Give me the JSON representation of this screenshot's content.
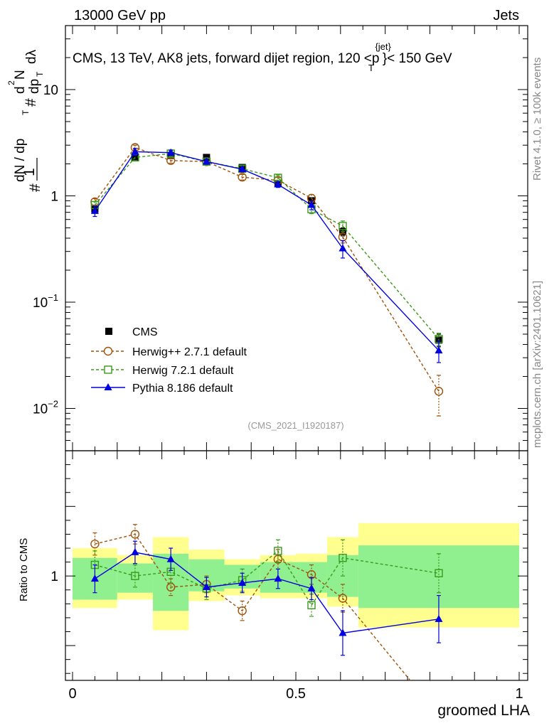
{
  "header": {
    "left": "13000 GeV pp",
    "right": "Jets"
  },
  "title": "CMS, 13 TeV, AK8 jets, forward dijet region, 120 <p_T^{jet}< 150 GeV",
  "title_parts": {
    "main": "CMS, 13 TeV, AK8 jets, forward dijet region, 120 <p",
    "sup": "{jet}",
    "sub": "T",
    "tail": "}< 150 GeV"
  },
  "ylabel_parts": [
    "#",
    "1",
    "dN / dp",
    "T",
    "#",
    "d",
    "2",
    "N",
    "dp",
    "T",
    "dλ"
  ],
  "ratio_ylabel": "Ratio to CMS",
  "xlabel": "groomed LHA",
  "watermark": "(CMS_2021_I1920187)",
  "side_text": {
    "rivet": "Rivet 4.1.0, ≥ 100k events",
    "mcplots": "mcplots.cern.ch [arXiv:2401.10621]"
  },
  "colors": {
    "cms": "#000000",
    "herwigpp": "#a0520a",
    "herwig7": "#3a9a1a",
    "pythia": "#0000e0",
    "band_inner": "#90f090",
    "band_outer": "#ffff90"
  },
  "chart_data": {
    "type": "line",
    "main_axes": {
      "xlim": [
        0,
        1
      ],
      "ylim_log": [
        0.004,
        40
      ],
      "yticks": [
        {
          "v": 0.01,
          "base": "10",
          "exp": "−2"
        },
        {
          "v": 0.1,
          "base": "10",
          "exp": "−1"
        },
        {
          "v": 1,
          "label": "1"
        },
        {
          "v": 10,
          "label": "10"
        }
      ]
    },
    "ratio_axes": {
      "xlim": [
        0,
        1
      ],
      "ylim": [
        0.25,
        1.9
      ],
      "yticks": [
        {
          "v": 1,
          "label": "1"
        }
      ]
    },
    "xticks": [
      {
        "v": 0,
        "label": "0"
      },
      {
        "v": 0.5,
        "label": "0.5"
      },
      {
        "v": 1,
        "label": "1"
      }
    ],
    "bins": [
      [
        0,
        0.1
      ],
      [
        0.1,
        0.18
      ],
      [
        0.18,
        0.26
      ],
      [
        0.26,
        0.34
      ],
      [
        0.34,
        0.42
      ],
      [
        0.42,
        0.5
      ],
      [
        0.5,
        0.57
      ],
      [
        0.57,
        0.64
      ],
      [
        0.64,
        1.0
      ]
    ],
    "x": [
      0.05,
      0.14,
      0.22,
      0.3,
      0.38,
      0.46,
      0.535,
      0.605,
      0.82
    ],
    "series": [
      {
        "name": "CMS",
        "marker": "filled-square",
        "style": "none",
        "color": "#000000",
        "values": [
          0.75,
          2.3,
          2.4,
          2.3,
          1.85,
          1.3,
          0.9,
          0.46,
          0.044
        ],
        "errors": [
          0.06,
          0.15,
          0.15,
          0.15,
          0.12,
          0.08,
          0.06,
          0.04,
          0.006
        ]
      },
      {
        "name": "Herwig++ 2.7.1 default",
        "marker": "open-circle",
        "style": "dashed",
        "color": "#a0520a",
        "values": [
          0.88,
          2.85,
          2.15,
          2.1,
          1.5,
          1.4,
          0.95,
          0.41,
          0.0145
        ],
        "errors": [
          0.06,
          0.15,
          0.12,
          0.12,
          0.09,
          0.09,
          0.08,
          0.05,
          0.006
        ]
      },
      {
        "name": "Herwig 7.2.1 default",
        "marker": "open-square",
        "style": "dashed",
        "color": "#3a9a1a",
        "values": [
          0.82,
          2.3,
          2.5,
          2.1,
          1.8,
          1.48,
          0.75,
          0.52,
          0.045
        ],
        "errors": [
          0.06,
          0.15,
          0.15,
          0.12,
          0.1,
          0.09,
          0.07,
          0.06,
          0.006
        ]
      },
      {
        "name": "Pythia 8.186 default",
        "marker": "filled-triangle",
        "style": "solid",
        "color": "#0000e0",
        "values": [
          0.72,
          2.6,
          2.55,
          2.1,
          1.78,
          1.28,
          0.82,
          0.32,
          0.035
        ],
        "errors": [
          0.08,
          0.2,
          0.15,
          0.12,
          0.1,
          0.08,
          0.08,
          0.06,
          0.008
        ]
      }
    ],
    "ratio": {
      "band_inner": [
        [
          0.83,
          1.13
        ],
        [
          0.88,
          1.09
        ],
        [
          0.75,
          1.16
        ],
        [
          0.89,
          1.12
        ],
        [
          0.91,
          1.08
        ],
        [
          0.88,
          1.1
        ],
        [
          0.88,
          1.1
        ],
        [
          0.85,
          1.15
        ],
        [
          0.77,
          1.22
        ]
      ],
      "band_outer": [
        [
          0.77,
          1.2
        ],
        [
          0.83,
          1.15
        ],
        [
          0.61,
          1.28
        ],
        [
          0.82,
          1.19
        ],
        [
          0.86,
          1.12
        ],
        [
          0.84,
          1.15
        ],
        [
          0.84,
          1.16
        ],
        [
          0.78,
          1.28
        ],
        [
          0.63,
          1.38
        ]
      ],
      "series": [
        {
          "name": "Herwig++ 2.7.1 default",
          "values": [
            1.23,
            1.3,
            0.92,
            0.94,
            0.75,
            1.12,
            1.01,
            0.84,
            0.0
          ],
          "errors": [
            0.08,
            0.07,
            0.06,
            0.06,
            0.07,
            0.07,
            0.07,
            0.1,
            0.0
          ]
        },
        {
          "name": "Herwig 7.2.1 default",
          "values": [
            1.08,
            1.0,
            1.03,
            0.91,
            0.97,
            1.18,
            0.79,
            1.13,
            1.02
          ],
          "errors": [
            0.1,
            0.08,
            0.08,
            0.08,
            0.08,
            0.08,
            0.08,
            0.13,
            0.14
          ]
        },
        {
          "name": "Pythia 8.186 default",
          "values": [
            0.98,
            1.17,
            1.12,
            0.92,
            0.95,
            0.98,
            0.91,
            0.59,
            0.69
          ],
          "errors": [
            0.1,
            0.08,
            0.08,
            0.07,
            0.07,
            0.07,
            0.08,
            0.16,
            0.17
          ]
        }
      ]
    }
  }
}
